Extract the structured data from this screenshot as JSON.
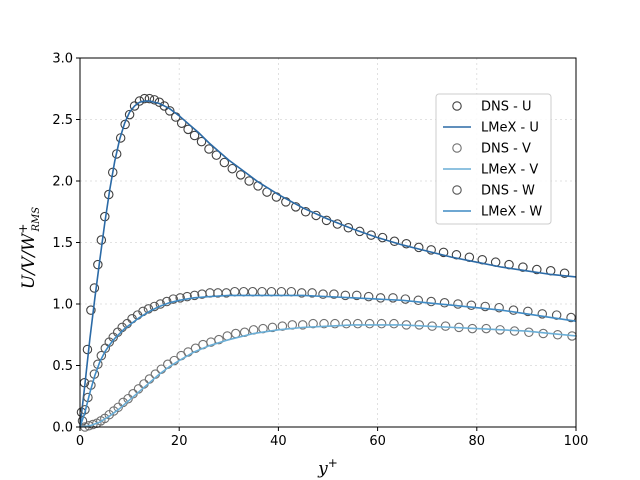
{
  "chart_data": {
    "type": "line",
    "title": "",
    "xlabel": "y",
    "xlabel_sup": "+",
    "ylabel": "U/V/W",
    "ylabel_sup": "+",
    "ylabel_sub": "RMS",
    "xlim": [
      0,
      100
    ],
    "ylim": [
      0,
      3.0
    ],
    "xticks": [
      0,
      20,
      40,
      60,
      80,
      100
    ],
    "yticks": [
      0.0,
      0.5,
      1.0,
      1.5,
      2.0,
      2.5,
      3.0
    ],
    "xtick_labels": [
      "0",
      "20",
      "40",
      "60",
      "80",
      "100"
    ],
    "ytick_labels": [
      "0.0",
      "0.5",
      "1.0",
      "1.5",
      "2.0",
      "2.5",
      "3.0"
    ],
    "grid": true,
    "legend_position": "upper-right",
    "colors": {
      "dns_u": "#404040",
      "dns_v": "#707070",
      "dns_w": "#555555",
      "lmex_u": "#2b6aa6",
      "lmex_v": "#6aaed6",
      "lmex_w": "#3f8ac4",
      "grid": "#d9d9d9"
    },
    "series": [
      {
        "name": "DNS - U",
        "kind": "markers",
        "color_key": "dns_u",
        "x": [
          0.3,
          0.9,
          1.5,
          2.2,
          2.9,
          3.6,
          4.3,
          5.0,
          5.8,
          6.6,
          7.4,
          8.2,
          9.1,
          10.0,
          11.0,
          12.0,
          13.0,
          14.0,
          15.0,
          16.0,
          17.0,
          18.1,
          19.3,
          20.5,
          21.8,
          23.1,
          24.5,
          26.0,
          27.5,
          29.1,
          30.7,
          32.4,
          34.1,
          35.9,
          37.7,
          39.6,
          41.5,
          43.5,
          45.5,
          47.6,
          49.7,
          51.9,
          54.1,
          56.4,
          58.7,
          61.0,
          63.4,
          65.8,
          68.3,
          70.8,
          73.3,
          75.9,
          78.5,
          81.1,
          83.8,
          86.5,
          89.3,
          92.1,
          94.9,
          97.7
        ],
        "y": [
          0.12,
          0.36,
          0.63,
          0.95,
          1.13,
          1.32,
          1.52,
          1.71,
          1.89,
          2.07,
          2.22,
          2.35,
          2.46,
          2.54,
          2.61,
          2.65,
          2.67,
          2.67,
          2.66,
          2.64,
          2.61,
          2.57,
          2.52,
          2.47,
          2.42,
          2.37,
          2.32,
          2.26,
          2.21,
          2.15,
          2.1,
          2.05,
          2.0,
          1.96,
          1.91,
          1.87,
          1.83,
          1.79,
          1.75,
          1.72,
          1.68,
          1.65,
          1.62,
          1.59,
          1.56,
          1.54,
          1.51,
          1.49,
          1.46,
          1.44,
          1.42,
          1.4,
          1.38,
          1.36,
          1.34,
          1.32,
          1.3,
          1.28,
          1.27,
          1.25
        ]
      },
      {
        "name": "LMeX - U",
        "kind": "line",
        "color_key": "lmex_u",
        "x": [
          0,
          1,
          2,
          3,
          4,
          5,
          6,
          7,
          8,
          9,
          10,
          11,
          12,
          13,
          14,
          15,
          16,
          17,
          18,
          19,
          20,
          22,
          24,
          26,
          28,
          30,
          33,
          36,
          40,
          45,
          50,
          55,
          60,
          65,
          70,
          75,
          80,
          85,
          90,
          95,
          100
        ],
        "y": [
          0.0,
          0.35,
          0.72,
          1.05,
          1.36,
          1.66,
          1.93,
          2.16,
          2.34,
          2.47,
          2.56,
          2.61,
          2.64,
          2.65,
          2.65,
          2.64,
          2.63,
          2.61,
          2.59,
          2.56,
          2.53,
          2.46,
          2.39,
          2.31,
          2.24,
          2.17,
          2.08,
          1.99,
          1.89,
          1.78,
          1.69,
          1.61,
          1.54,
          1.48,
          1.43,
          1.38,
          1.34,
          1.3,
          1.27,
          1.24,
          1.22
        ]
      },
      {
        "name": "DNS - V",
        "kind": "markers",
        "color_key": "dns_v",
        "x": [
          1.0,
          1.8,
          2.6,
          3.4,
          4.2,
          5.0,
          5.9,
          6.8,
          7.7,
          8.7,
          9.7,
          10.7,
          11.8,
          12.9,
          14.0,
          15.2,
          16.4,
          17.7,
          19.0,
          20.4,
          21.8,
          23.3,
          24.8,
          26.4,
          28.0,
          29.7,
          31.4,
          33.2,
          35.0,
          36.9,
          38.8,
          40.8,
          42.8,
          44.9,
          47.0,
          49.2,
          51.4,
          53.7,
          56.0,
          58.4,
          60.8,
          63.3,
          65.8,
          68.4,
          71.0,
          73.7,
          76.4,
          79.1,
          81.9,
          84.7,
          87.6,
          90.5,
          93.4,
          96.3,
          99.2
        ],
        "y": [
          0.0,
          0.01,
          0.02,
          0.03,
          0.05,
          0.07,
          0.1,
          0.13,
          0.16,
          0.2,
          0.23,
          0.27,
          0.31,
          0.35,
          0.39,
          0.43,
          0.47,
          0.51,
          0.54,
          0.58,
          0.61,
          0.64,
          0.67,
          0.69,
          0.71,
          0.74,
          0.76,
          0.77,
          0.79,
          0.8,
          0.81,
          0.82,
          0.83,
          0.83,
          0.84,
          0.84,
          0.84,
          0.84,
          0.84,
          0.84,
          0.84,
          0.84,
          0.83,
          0.83,
          0.82,
          0.82,
          0.81,
          0.8,
          0.8,
          0.79,
          0.78,
          0.77,
          0.76,
          0.75,
          0.74
        ]
      },
      {
        "name": "LMeX - V",
        "kind": "line",
        "color_key": "lmex_v",
        "x": [
          0,
          2,
          4,
          6,
          8,
          10,
          12,
          14,
          16,
          18,
          20,
          23,
          26,
          30,
          35,
          40,
          45,
          50,
          55,
          60,
          65,
          70,
          75,
          80,
          85,
          90,
          95,
          100
        ],
        "y": [
          0.0,
          0.01,
          0.04,
          0.09,
          0.15,
          0.22,
          0.29,
          0.36,
          0.43,
          0.49,
          0.54,
          0.61,
          0.66,
          0.71,
          0.76,
          0.79,
          0.81,
          0.82,
          0.83,
          0.83,
          0.83,
          0.82,
          0.81,
          0.8,
          0.79,
          0.78,
          0.76,
          0.74
        ]
      },
      {
        "name": "DNS - W",
        "kind": "markers",
        "color_key": "dns_w",
        "x": [
          0.5,
          1.0,
          1.6,
          2.2,
          2.9,
          3.6,
          4.3,
          5.1,
          5.9,
          6.7,
          7.6,
          8.5,
          9.5,
          10.5,
          11.6,
          12.7,
          13.8,
          15.0,
          16.2,
          17.5,
          18.8,
          20.2,
          21.6,
          23.1,
          24.6,
          26.2,
          27.8,
          29.5,
          31.2,
          33.0,
          34.8,
          36.7,
          38.6,
          40.6,
          42.6,
          44.7,
          46.8,
          49.0,
          51.2,
          53.5,
          55.8,
          58.2,
          60.6,
          63.1,
          65.6,
          68.2,
          70.8,
          73.5,
          76.2,
          78.9,
          81.7,
          84.5,
          87.4,
          90.3,
          93.2,
          96.1,
          99.0
        ],
        "y": [
          0.05,
          0.14,
          0.24,
          0.34,
          0.43,
          0.51,
          0.58,
          0.64,
          0.69,
          0.73,
          0.77,
          0.81,
          0.84,
          0.88,
          0.91,
          0.94,
          0.96,
          0.98,
          1.0,
          1.02,
          1.04,
          1.05,
          1.06,
          1.07,
          1.08,
          1.09,
          1.09,
          1.09,
          1.1,
          1.1,
          1.1,
          1.1,
          1.1,
          1.1,
          1.1,
          1.09,
          1.09,
          1.08,
          1.08,
          1.07,
          1.07,
          1.06,
          1.05,
          1.05,
          1.04,
          1.03,
          1.02,
          1.01,
          1.0,
          0.99,
          0.98,
          0.97,
          0.95,
          0.94,
          0.92,
          0.91,
          0.89
        ]
      },
      {
        "name": "LMeX - W",
        "kind": "line",
        "color_key": "lmex_w",
        "x": [
          0,
          1,
          2,
          3,
          4,
          5,
          6,
          7,
          8,
          9,
          10,
          12,
          14,
          16,
          18,
          20,
          23,
          26,
          30,
          35,
          40,
          45,
          50,
          55,
          60,
          65,
          70,
          75,
          80,
          85,
          90,
          95,
          100
        ],
        "y": [
          0.0,
          0.12,
          0.28,
          0.42,
          0.53,
          0.61,
          0.67,
          0.72,
          0.76,
          0.8,
          0.83,
          0.89,
          0.94,
          0.98,
          1.01,
          1.03,
          1.05,
          1.06,
          1.07,
          1.07,
          1.07,
          1.07,
          1.06,
          1.05,
          1.04,
          1.03,
          1.01,
          0.99,
          0.97,
          0.95,
          0.92,
          0.89,
          0.86
        ]
      }
    ]
  }
}
